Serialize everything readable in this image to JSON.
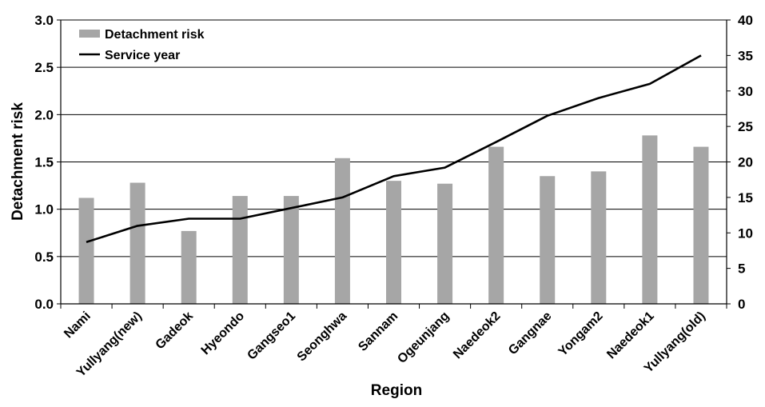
{
  "chart_data": {
    "type": "bar",
    "categories": [
      "Nami",
      "Yullyang(new)",
      "Gadeok",
      "Hyeondo",
      "Gangseo1",
      "Seonghwa",
      "Sannam",
      "Ogeunjang",
      "Naedeok2",
      "Gangnae",
      "Yongam2",
      "Naedeok1",
      "Yullyang(old)"
    ],
    "series": [
      {
        "name": "Detachment risk",
        "type": "bar",
        "axis": "left",
        "color": "#a6a6a6",
        "values": [
          1.12,
          1.28,
          0.77,
          1.14,
          1.14,
          1.54,
          1.3,
          1.27,
          1.66,
          1.35,
          1.4,
          1.78,
          1.66
        ]
      },
      {
        "name": "Service year",
        "type": "line",
        "axis": "right",
        "color": "#000000",
        "values": [
          8.7,
          11.0,
          12.0,
          12.0,
          13.5,
          15.0,
          18.0,
          19.2,
          22.8,
          26.5,
          29.0,
          31.0,
          35.0
        ]
      }
    ],
    "xlabel": "Region",
    "ylabel": "Detachment risk",
    "ylim": [
      0,
      3.0
    ],
    "yticks": [
      "0.0",
      "0.5",
      "1.0",
      "1.5",
      "2.0",
      "2.5",
      "3.0"
    ],
    "y2lim": [
      0,
      40
    ],
    "y2ticks": [
      "0",
      "5",
      "10",
      "15",
      "20",
      "25",
      "30",
      "35",
      "40"
    ],
    "grid": true,
    "legend": "top-left"
  }
}
